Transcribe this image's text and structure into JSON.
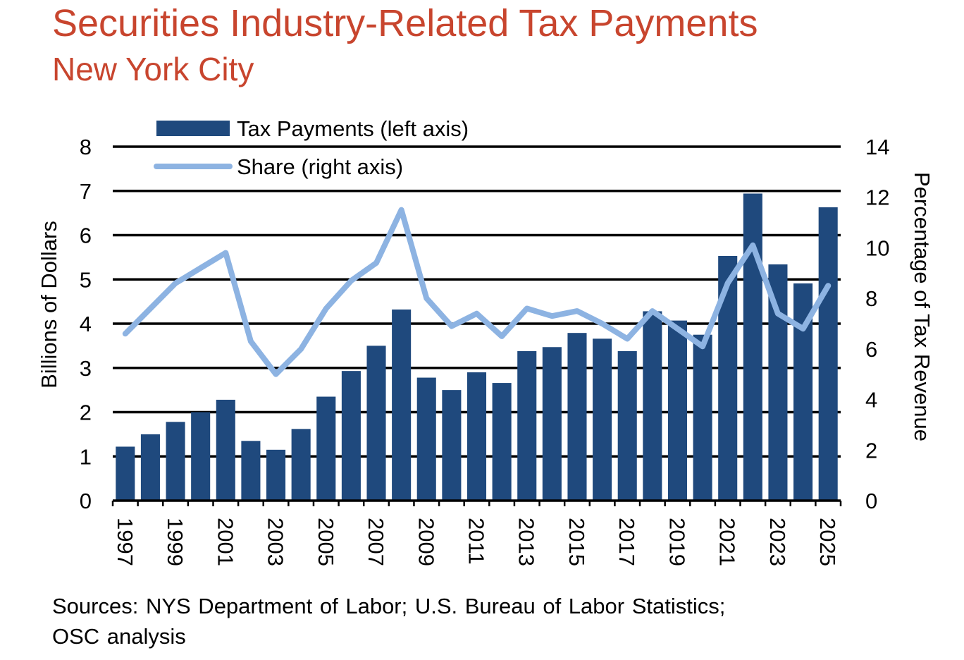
{
  "title": "Securities Industry-Related Tax Payments",
  "subtitle": "New York City",
  "source_lines": [
    "Sources: NYS Department of Labor; U.S. Bureau of Labor Statistics;",
    "OSC analysis"
  ],
  "colors": {
    "title": "#c8452e",
    "bar": "#1f497d",
    "line": "#8db3e2",
    "grid": "#000000"
  },
  "chart_data": {
    "type": "bar",
    "title": "Securities Industry-Related Tax Payments",
    "subtitle": "New York City",
    "xlabel": "",
    "ylabel": "Billions of Dollars",
    "y2label": "Percentage of Tax Revenue",
    "ylim": [
      0,
      8
    ],
    "y2lim": [
      0,
      14
    ],
    "yticks": [
      "0",
      "1",
      "2",
      "3",
      "4",
      "5",
      "6",
      "7",
      "8"
    ],
    "y2ticks": [
      "0",
      "2",
      "4",
      "6",
      "8",
      "10",
      "12",
      "14"
    ],
    "grid": true,
    "legend_position": "top-left",
    "categories": [
      "1997",
      "1998",
      "1999",
      "2000",
      "2001",
      "2002",
      "2003",
      "2004",
      "2005",
      "2006",
      "2007",
      "2008",
      "2009",
      "2010",
      "2011",
      "2012",
      "2013",
      "2014",
      "2015",
      "2016",
      "2017",
      "2018",
      "2019",
      "2020",
      "2021",
      "2022",
      "2023",
      "2024",
      "2025"
    ],
    "x_tick_labels": [
      "1997",
      "1999",
      "2001",
      "2003",
      "2005",
      "2007",
      "2009",
      "2011",
      "2013",
      "2015",
      "2017",
      "2019",
      "2021",
      "2023",
      "2025"
    ],
    "series": [
      {
        "name": "Tax Payments (left axis)",
        "type": "bar",
        "axis": "left",
        "values": [
          1.22,
          1.5,
          1.78,
          2.0,
          2.28,
          1.35,
          1.15,
          1.62,
          2.35,
          2.93,
          3.5,
          4.32,
          2.78,
          2.5,
          2.9,
          2.66,
          3.38,
          3.47,
          3.79,
          3.66,
          3.38,
          4.28,
          4.07,
          3.75,
          5.53,
          6.94,
          5.34,
          4.91,
          6.63
        ]
      },
      {
        "name": "Share (right axis)",
        "type": "line",
        "axis": "right",
        "values": [
          6.6,
          7.6,
          8.6,
          9.2,
          9.8,
          6.3,
          5.0,
          6.0,
          7.6,
          8.7,
          9.4,
          11.5,
          8.0,
          6.9,
          7.4,
          6.5,
          7.6,
          7.3,
          7.5,
          7.0,
          6.4,
          7.5,
          6.8,
          6.1,
          8.6,
          10.1,
          7.4,
          6.8,
          8.5
        ]
      }
    ]
  }
}
